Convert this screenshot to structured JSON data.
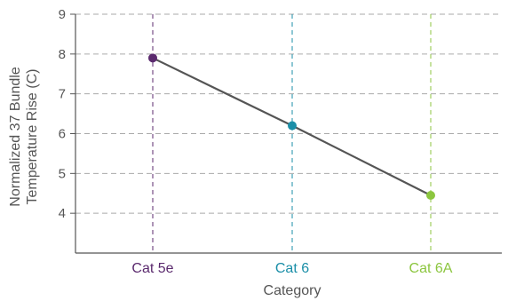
{
  "chart_data": {
    "type": "line",
    "categories": [
      "Cat 5e",
      "Cat 6",
      "Cat 6A"
    ],
    "category_colors": [
      "#5b2a6e",
      "#1b8fa8",
      "#8cc63f"
    ],
    "values": [
      7.9,
      6.2,
      4.45
    ],
    "line_color": "#555555",
    "title": "",
    "xlabel": "Category",
    "ylabel_lines": [
      "Normalized 37 Bundle",
      "Temperature Rise (C)"
    ],
    "ylim": [
      3,
      9
    ],
    "yticks": [
      4,
      5,
      6,
      7,
      8,
      9
    ],
    "grid": true
  }
}
